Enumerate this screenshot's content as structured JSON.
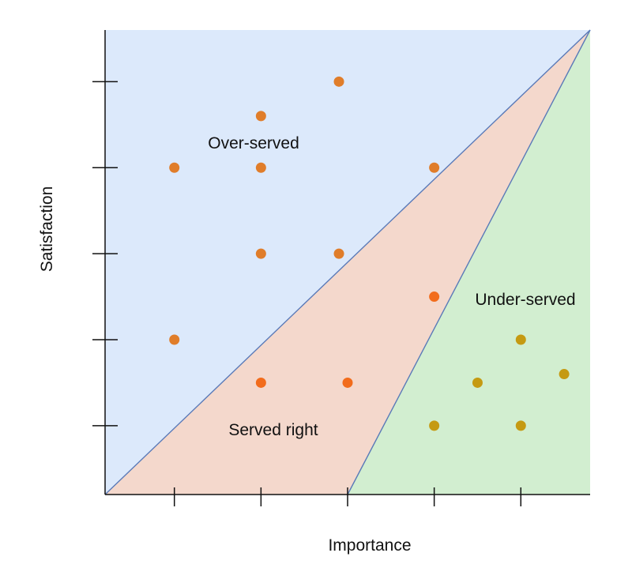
{
  "chart_data": {
    "type": "scatter",
    "title": "",
    "xlabel": "Importance",
    "ylabel": "Satisfaction",
    "xlim": [
      0,
      5.6
    ],
    "ylim": [
      0,
      5.4
    ],
    "x_ticks": [
      0.8,
      1.8,
      2.8,
      3.8,
      4.8
    ],
    "y_ticks": [
      0.8,
      1.8,
      2.8,
      3.8,
      4.8
    ],
    "regions": [
      {
        "name": "Over-served",
        "color": "#dce9fb",
        "label": "Over-served"
      },
      {
        "name": "Served right",
        "color": "#f4d8cc",
        "label": "Served right"
      },
      {
        "name": "Under-served",
        "color": "#d2eed0",
        "label": "Under-served"
      }
    ],
    "boundary_color": "#5a7ab8",
    "axis_color": "#111111",
    "series": [
      {
        "region": "Over-served",
        "color": "#e07d2a",
        "points": [
          {
            "x": 2.7,
            "y": 4.8
          },
          {
            "x": 1.8,
            "y": 4.4
          },
          {
            "x": 0.8,
            "y": 3.8
          },
          {
            "x": 1.8,
            "y": 3.8
          },
          {
            "x": 3.8,
            "y": 3.8
          },
          {
            "x": 1.8,
            "y": 2.8
          },
          {
            "x": 2.7,
            "y": 2.8
          },
          {
            "x": 0.8,
            "y": 1.8
          }
        ]
      },
      {
        "region": "Served right",
        "color": "#f26c1c",
        "points": [
          {
            "x": 1.8,
            "y": 1.3
          },
          {
            "x": 2.8,
            "y": 1.3
          },
          {
            "x": 3.8,
            "y": 2.3
          }
        ]
      },
      {
        "region": "Under-served",
        "color": "#c59a12",
        "points": [
          {
            "x": 4.8,
            "y": 1.8
          },
          {
            "x": 4.3,
            "y": 1.3
          },
          {
            "x": 5.3,
            "y": 1.4
          },
          {
            "x": 3.8,
            "y": 0.8
          },
          {
            "x": 4.8,
            "y": 0.8
          }
        ]
      }
    ]
  }
}
